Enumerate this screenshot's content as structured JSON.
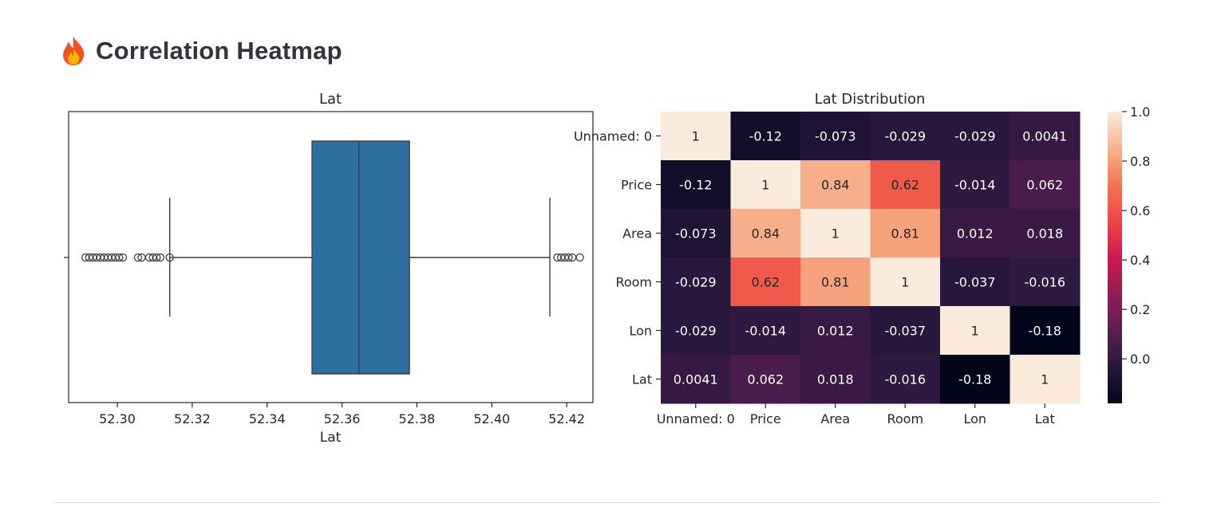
{
  "header": {
    "icon": "fire-icon",
    "title": "Correlation Heatmap"
  },
  "chart_data": [
    {
      "type": "box",
      "title": "Lat",
      "xlabel": "Lat",
      "xlim": [
        52.287,
        52.427
      ],
      "xticks": [
        52.3,
        52.32,
        52.34,
        52.36,
        52.38,
        52.4,
        52.42
      ],
      "xtick_labels": [
        "52.30",
        "52.32",
        "52.34",
        "52.36",
        "52.38",
        "52.40",
        "52.42"
      ],
      "box": {
        "whisker_low": 52.314,
        "q1": 52.352,
        "median": 52.3645,
        "q3": 52.378,
        "whisker_high": 52.4155
      },
      "outliers": [
        52.2915,
        52.2925,
        52.2935,
        52.2945,
        52.2955,
        52.2965,
        52.2975,
        52.2985,
        52.2995,
        52.3005,
        52.3015,
        52.3055,
        52.3065,
        52.3085,
        52.3095,
        52.3105,
        52.3115,
        52.314,
        52.4175,
        52.4185,
        52.4195,
        52.4205,
        52.4215,
        52.4235
      ],
      "color": "#2f6fa0",
      "grid": false
    },
    {
      "type": "heatmap",
      "title": "Lat Distribution",
      "row_labels": [
        "Unnamed: 0",
        "Price",
        "Area",
        "Room",
        "Lon",
        "Lat"
      ],
      "col_labels": [
        "Unnamed: 0",
        "Price",
        "Area",
        "Room",
        "Lon",
        "Lat"
      ],
      "values": [
        [
          1,
          -0.12,
          -0.073,
          -0.029,
          -0.029,
          0.0041
        ],
        [
          -0.12,
          1,
          0.84,
          0.62,
          -0.014,
          0.062
        ],
        [
          -0.073,
          0.84,
          1,
          0.81,
          0.012,
          0.018
        ],
        [
          -0.029,
          0.62,
          0.81,
          1,
          -0.037,
          -0.016
        ],
        [
          -0.029,
          -0.014,
          0.012,
          -0.037,
          1,
          -0.18
        ],
        [
          0.0041,
          0.062,
          0.018,
          -0.016,
          -0.18,
          1
        ]
      ],
      "cell_labels": [
        [
          "1",
          "-0.12",
          "-0.073",
          "-0.029",
          "-0.029",
          "0.0041"
        ],
        [
          "-0.12",
          "1",
          "0.84",
          "0.62",
          "-0.014",
          "0.062"
        ],
        [
          "-0.073",
          "0.84",
          "1",
          "0.81",
          "0.012",
          "0.018"
        ],
        [
          "-0.029",
          "0.62",
          "0.81",
          "1",
          "-0.037",
          "-0.016"
        ],
        [
          "-0.029",
          "-0.014",
          "0.012",
          "-0.037",
          "1",
          "-0.18"
        ],
        [
          "0.0041",
          "0.062",
          "0.018",
          "-0.016",
          "-0.18",
          "1"
        ]
      ],
      "vmin": -0.18,
      "vmax": 1.0,
      "colormap": "rocket",
      "colorbar_ticks": [
        1.0,
        0.8,
        0.6,
        0.4,
        0.2,
        0.0
      ],
      "colorbar_tick_labels": [
        "1.0",
        "0.8",
        "0.6",
        "0.4",
        "0.2",
        "0.0"
      ]
    }
  ]
}
